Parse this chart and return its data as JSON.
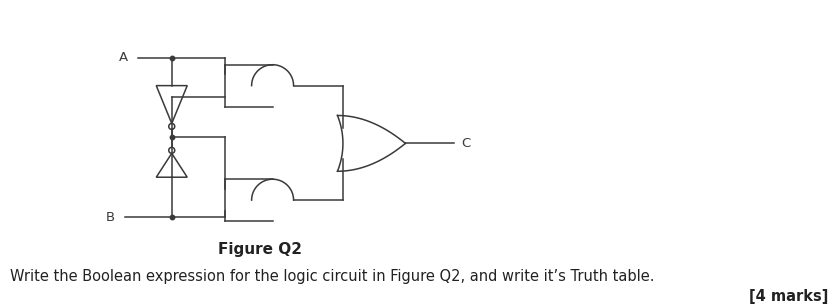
{
  "title": "Figure Q2",
  "title_fontsize": 11,
  "title_fontweight": "bold",
  "body_text": "Write the Boolean expression for the logic circuit in Figure Q2, and write it’s Truth table.",
  "body_fontsize": 10.5,
  "marks_text": "[4 marks]",
  "marks_fontsize": 10.5,
  "marks_fontweight": "bold",
  "bg_color": "#ffffff",
  "line_color": "#3a3a3a",
  "fig_width": 8.4,
  "fig_height": 3.06,
  "dpi": 100,
  "label_A": "A",
  "label_B": "B",
  "label_C": "C"
}
